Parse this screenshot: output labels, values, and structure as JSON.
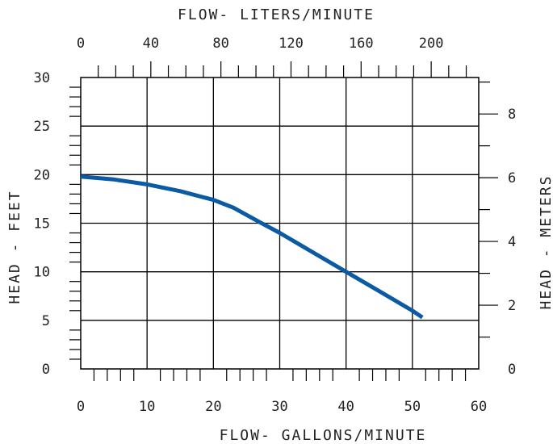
{
  "chart_data": {
    "type": "line",
    "title": "",
    "xlabel": "FLOW- GALLONS/MINUTE",
    "ylabel": "HEAD - FEET",
    "x2label": "FLOW- LITERS/MINUTE",
    "y2label": "HEAD - METERS",
    "xlim": [
      0,
      60
    ],
    "ylim": [
      0,
      30
    ],
    "xticks": [
      "0",
      "10",
      "20",
      "30",
      "40",
      "50",
      "60"
    ],
    "yticks": [
      "0",
      "5",
      "10",
      "15",
      "20",
      "25",
      "30"
    ],
    "x2ticks": [
      "0",
      "40",
      "80",
      "120",
      "160",
      "200"
    ],
    "y2ticks": [
      "0",
      "2",
      "4",
      "6",
      "8"
    ],
    "grid": true,
    "line_color": "#0a5aa4",
    "series": [
      {
        "x": [
          0,
          5,
          10,
          15,
          20,
          23,
          27,
          30,
          35,
          40,
          45,
          50,
          51.5
        ],
        "y": [
          19.8,
          19.5,
          19.0,
          18.3,
          17.4,
          16.6,
          15.1,
          14.0,
          12.0,
          10.0,
          8.0,
          6.0,
          5.3
        ]
      }
    ]
  }
}
